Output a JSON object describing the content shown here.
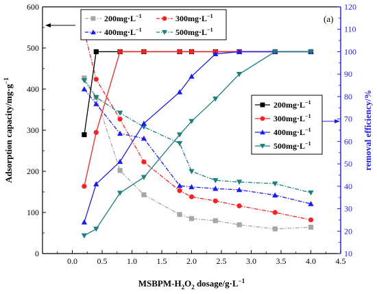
{
  "chart_data": {
    "type": "line",
    "panel_label": "(a)",
    "xlabel_parts": [
      "MSBPM-H",
      "2",
      "O",
      "2",
      "  dosage/g·L",
      "−1"
    ],
    "ylabel_left_parts": [
      "Adsorption capacity/mg·g",
      "−1"
    ],
    "ylabel_right": "removal efficiency/%",
    "xlim": [
      -0.5,
      4.5
    ],
    "ylim_left": [
      0,
      600
    ],
    "ylim_right": [
      10,
      120
    ],
    "x_ticks": [
      "0.0",
      "0.5",
      "1.0",
      "1.5",
      "2.0",
      "2.5",
      "3.0",
      "3.5",
      "4.0",
      "4.5"
    ],
    "x_tick_values": [
      0,
      0.5,
      1.0,
      1.5,
      2.0,
      2.5,
      3.0,
      3.5,
      4.0,
      4.5
    ],
    "y_ticks_left": [
      "0",
      "100",
      "200",
      "300",
      "400",
      "500",
      "600"
    ],
    "y_tick_values_left": [
      0,
      100,
      200,
      300,
      400,
      500,
      600
    ],
    "y_ticks_right": [
      "10",
      "20",
      "30",
      "40",
      "50",
      "60",
      "70",
      "80",
      "90",
      "100",
      "110",
      "120"
    ],
    "y_tick_values_right": [
      10,
      20,
      30,
      40,
      50,
      60,
      70,
      80,
      90,
      100,
      110,
      120
    ],
    "adsorption_series": [
      {
        "name_parts": [
          "200mg·L",
          "−1"
        ],
        "color": "#a6a6a6",
        "marker": "square",
        "x": [
          0.2,
          0.4,
          0.8,
          1.2,
          1.8,
          2.0,
          2.4,
          2.8,
          3.4,
          4.0
        ],
        "values": [
          427,
          380,
          202,
          143,
          95,
          85,
          80,
          70,
          60,
          64
        ]
      },
      {
        "name_parts": [
          "300mg·L",
          "−1"
        ],
        "color": "#ff2020",
        "marker": "circle",
        "x": [
          0.2,
          0.4,
          0.8,
          1.2,
          1.8,
          2.0,
          2.4,
          2.8,
          3.4,
          4.0
        ],
        "values": [
          541,
          424,
          327,
          223,
          153,
          138,
          128,
          116,
          100,
          82
        ]
      },
      {
        "name_parts": [
          "400mg·L",
          "−1"
        ],
        "color": "#1a1aff",
        "marker": "triangle-up",
        "x": [
          0.2,
          0.4,
          0.8,
          1.2,
          1.8,
          2.0,
          2.4,
          2.8,
          3.4,
          4.0
        ],
        "values": [
          400,
          364,
          292,
          280,
          165,
          162,
          158,
          155,
          142,
          121
        ]
      },
      {
        "name_parts": [
          "500mg·L",
          "−1"
        ],
        "color": "#1a7f7f",
        "marker": "triangle-down",
        "x": [
          0.2,
          0.4,
          0.8,
          1.2,
          1.8,
          2.0,
          2.4,
          2.8,
          3.4,
          4.0
        ],
        "values": [
          421,
          380,
          342,
          308,
          268,
          200,
          178,
          174,
          170,
          148
        ]
      }
    ],
    "removal_series": [
      {
        "name_parts": [
          "200mg·L",
          "−1"
        ],
        "color": "#000000",
        "marker": "square",
        "x": [
          0.2,
          0.4,
          0.8,
          1.2,
          1.8,
          2.0,
          2.4,
          2.8,
          3.4,
          4.0
        ],
        "values": [
          63,
          100,
          100,
          100,
          100,
          100,
          100,
          100,
          100,
          100
        ]
      },
      {
        "name_parts": [
          "300mg·L",
          "−1"
        ],
        "color": "#ff2020",
        "marker": "circle",
        "x": [
          0.2,
          0.4,
          0.8,
          1.2,
          1.8,
          2.0,
          2.4,
          2.8,
          3.4,
          4.0
        ],
        "values": [
          40,
          64,
          100,
          100,
          100,
          100,
          100,
          100,
          100,
          100
        ]
      },
      {
        "name_parts": [
          "400mg·L",
          "−1"
        ],
        "color": "#1a1aff",
        "marker": "triangle-up",
        "x": [
          0.2,
          0.4,
          0.8,
          1.2,
          1.8,
          2.0,
          2.4,
          2.8,
          3.4,
          4.0
        ],
        "values": [
          24,
          41,
          51,
          68,
          82,
          89,
          99,
          100,
          100,
          100
        ]
      },
      {
        "name_parts": [
          "500mg·L",
          "−1"
        ],
        "color": "#1a7f7f",
        "marker": "triangle-down",
        "x": [
          0.2,
          0.4,
          0.8,
          1.2,
          1.8,
          2.0,
          2.4,
          2.8,
          3.4,
          4.0
        ],
        "values": [
          18,
          21,
          37,
          44,
          63,
          69,
          79,
          90,
          100,
          100
        ]
      }
    ],
    "legend_adsorption_placement": "top-left",
    "legend_removal_placement": "right-middle",
    "grid": false
  }
}
